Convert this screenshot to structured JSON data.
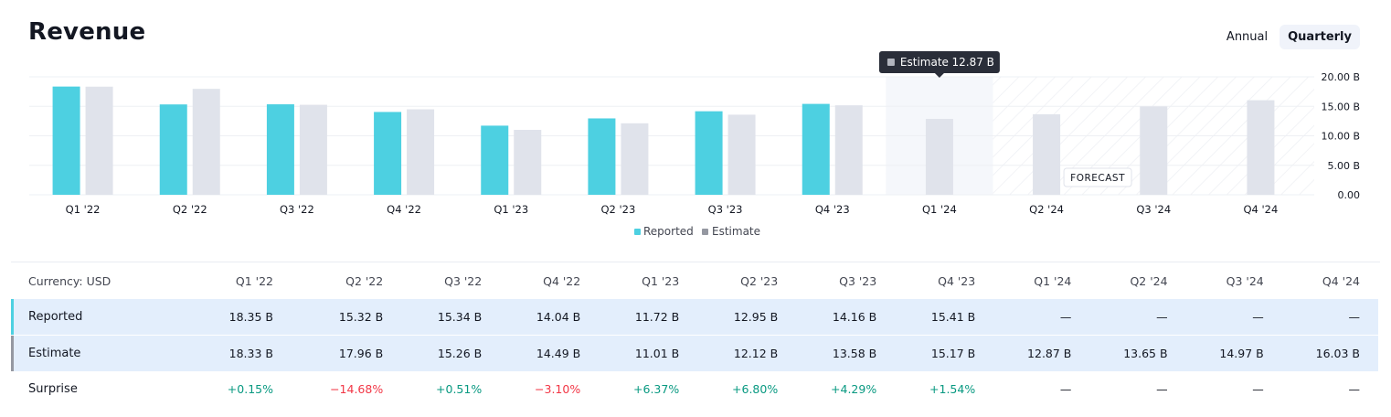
{
  "title": "Revenue",
  "period_tabs": {
    "annual": "Annual",
    "quarterly": "Quarterly"
  },
  "tooltip": {
    "label": "Estimate",
    "value": "12.87 B"
  },
  "forecast_label": "FORECAST",
  "legend": {
    "reported": "Reported",
    "estimate": "Estimate"
  },
  "colors": {
    "reported": "#4dd0e1",
    "estimate": "#e0e3eb"
  },
  "chart_data": {
    "type": "bar",
    "categories": [
      "Q1 '22",
      "Q2 '22",
      "Q3 '22",
      "Q4 '22",
      "Q1 '23",
      "Q2 '23",
      "Q3 '23",
      "Q4 '23",
      "Q1 '24",
      "Q2 '24",
      "Q3 '24",
      "Q4 '24"
    ],
    "series": [
      {
        "name": "Reported",
        "values": [
          18.35,
          15.32,
          15.34,
          14.04,
          11.72,
          12.95,
          14.16,
          15.41,
          null,
          null,
          null,
          null
        ]
      },
      {
        "name": "Estimate",
        "values": [
          18.33,
          17.96,
          15.26,
          14.49,
          11.01,
          12.12,
          13.58,
          15.17,
          12.87,
          13.65,
          14.97,
          16.03
        ]
      }
    ],
    "y_ticks": [
      "20.00 B",
      "15.00 B",
      "10.00 B",
      "5.00 B",
      "0.00"
    ],
    "ylim": [
      0,
      20
    ],
    "y_tick_values": [
      20,
      15,
      10,
      5,
      0
    ],
    "grid": true,
    "legend_position": "bottom",
    "forecast_from_index": 8,
    "highlight_index": 8
  },
  "table": {
    "currency_label": "Currency: USD",
    "columns": [
      "Q1 '22",
      "Q2 '22",
      "Q3 '22",
      "Q4 '22",
      "Q1 '23",
      "Q2 '23",
      "Q3 '23",
      "Q4 '23",
      "Q1 '24",
      "Q2 '24",
      "Q3 '24",
      "Q4 '24"
    ],
    "rows": [
      {
        "label": "Reported",
        "cells": [
          "18.35 B",
          "15.32 B",
          "15.34 B",
          "14.04 B",
          "11.72 B",
          "12.95 B",
          "14.16 B",
          "15.41 B",
          "—",
          "—",
          "—",
          "—"
        ]
      },
      {
        "label": "Estimate",
        "cells": [
          "18.33 B",
          "17.96 B",
          "15.26 B",
          "14.49 B",
          "11.01 B",
          "12.12 B",
          "13.58 B",
          "15.17 B",
          "12.87 B",
          "13.65 B",
          "14.97 B",
          "16.03 B"
        ]
      },
      {
        "label": "Surprise",
        "cells": [
          "+0.15%",
          "−14.68%",
          "+0.51%",
          "−3.10%",
          "+6.37%",
          "+6.80%",
          "+4.29%",
          "+1.54%",
          "—",
          "—",
          "—",
          "—"
        ]
      }
    ]
  }
}
